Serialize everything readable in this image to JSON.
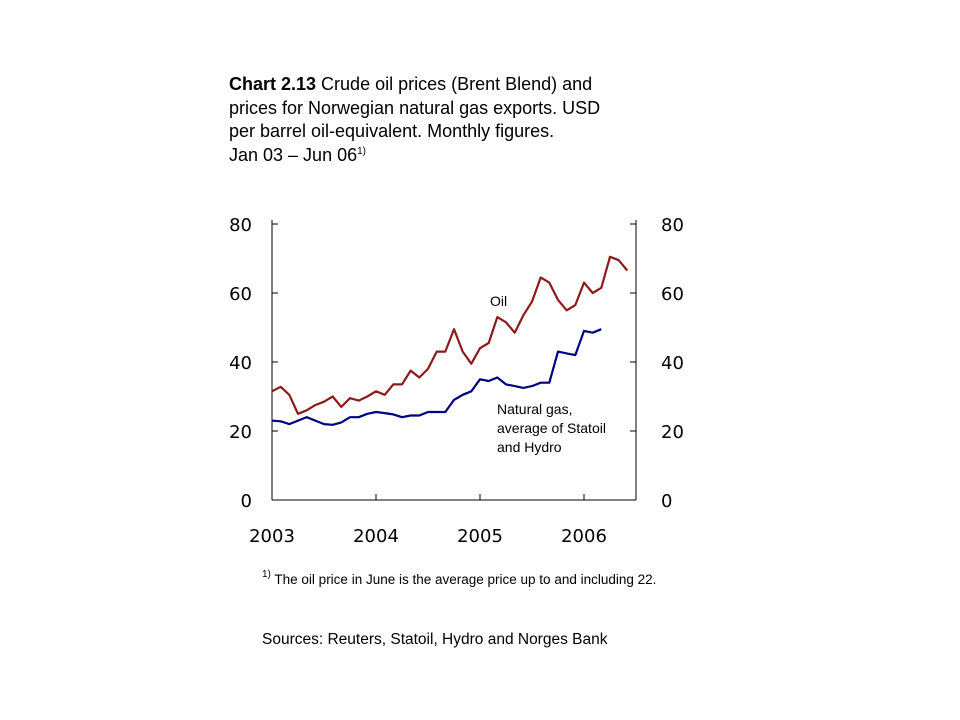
{
  "title": {
    "bold": "Chart 2.13",
    "line1": " Crude oil prices (Brent Blend) and",
    "line2": "prices for Norwegian natural gas exports. USD",
    "line3": "per barrel oil-equivalent. Monthly figures.",
    "line4": "Jan 03 – Jun 06",
    "sup": "1)"
  },
  "footnote": {
    "sup": "1)",
    "text": " The oil price in June is the average price up to and including 22."
  },
  "sources": "Sources: Reuters, Statoil, Hydro and Norges Bank",
  "chart_data": {
    "type": "line",
    "ylim": [
      0,
      80
    ],
    "yticks": [
      "0",
      "20",
      "40",
      "60",
      "80"
    ],
    "xlim": [
      2003,
      2006.5
    ],
    "xticks": [
      {
        "value": 2003,
        "label": "2003"
      },
      {
        "value": 2004,
        "label": "2004"
      },
      {
        "value": 2005,
        "label": "2005"
      },
      {
        "value": 2006,
        "label": "2006"
      }
    ],
    "grid": false,
    "series": [
      {
        "name": "Oil",
        "color": "#8b1a1a",
        "start": 2003.0,
        "step": 0.0833333,
        "values": [
          31.5,
          32.8,
          30.5,
          25.0,
          26.0,
          27.5,
          28.5,
          30.0,
          27.0,
          29.5,
          28.8,
          30.0,
          31.5,
          30.5,
          33.5,
          33.5,
          37.5,
          35.5,
          38.0,
          43.0,
          43.0,
          49.5,
          43.0,
          39.5,
          44.0,
          45.5,
          53.0,
          51.5,
          48.5,
          53.5,
          57.5,
          64.5,
          63.0,
          58.0,
          55.0,
          56.5,
          63.0,
          60.0,
          61.5,
          70.5,
          69.5,
          66.5
        ]
      },
      {
        "name": "Natural gas, average of Statoil and Hydro",
        "color": "#000080",
        "start": 2003.0,
        "step": 0.0833333,
        "values": [
          23.0,
          22.8,
          22.0,
          23.0,
          24.0,
          23.0,
          22.0,
          21.8,
          22.5,
          24.0,
          24.0,
          25.0,
          25.5,
          25.2,
          24.8,
          24.0,
          24.5,
          24.5,
          25.5,
          25.5,
          25.5,
          29.0,
          30.5,
          31.5,
          35.0,
          34.5,
          35.5,
          33.5,
          33.0,
          32.5,
          33.0,
          34.0,
          34.0,
          43.0,
          42.5,
          42.0,
          49.0,
          48.5,
          49.5
        ]
      }
    ],
    "annotations": {
      "oil_label": "Oil",
      "gas_label_line1": "Natural gas,",
      "gas_label_line2": "average of Statoil",
      "gas_label_line3": "and Hydro"
    }
  }
}
